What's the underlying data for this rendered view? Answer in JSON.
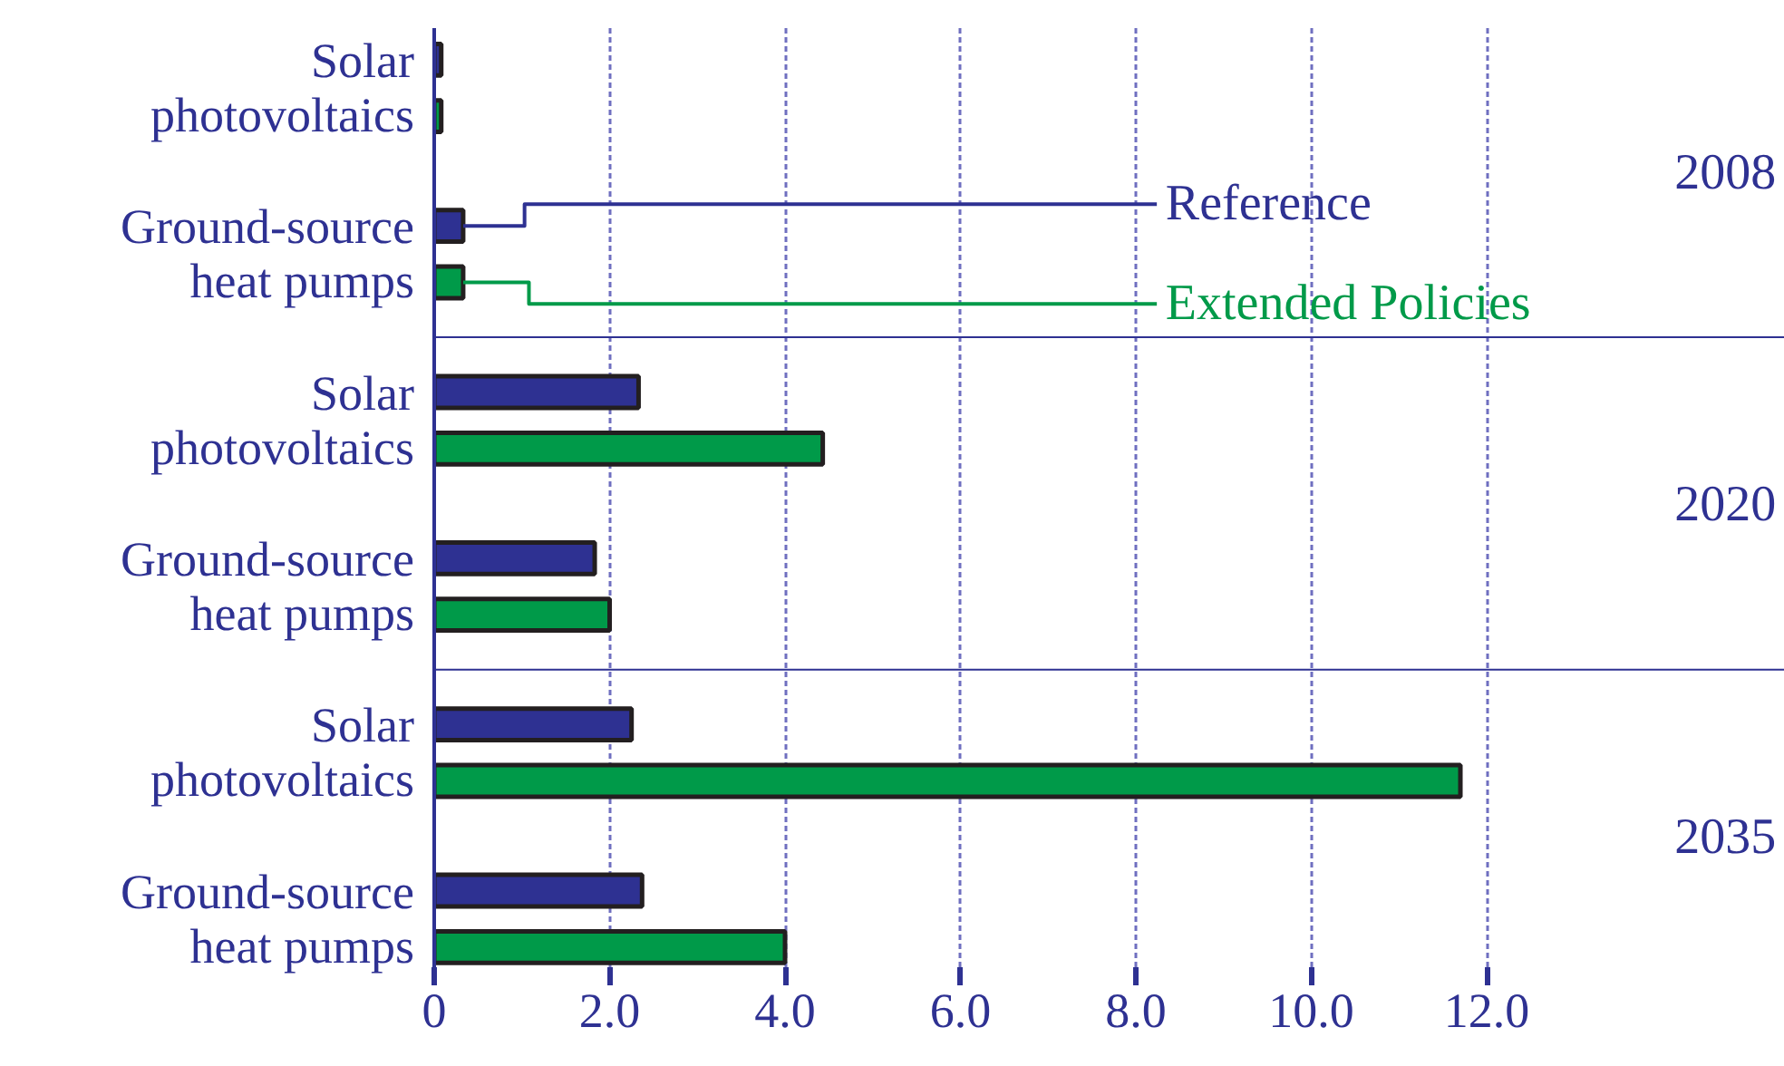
{
  "chart_data": {
    "type": "bar",
    "orientation": "horizontal",
    "categories": [
      "Solar\nphotovoltaics",
      "Ground-source\nheat pumps",
      "Solar\nphotovoltaics",
      "Ground-source\nheat pumps",
      "Solar\nphotovoltaics",
      "Ground-source\nheat pumps"
    ],
    "series": [
      {
        "name": "Reference",
        "color": "#2e3192",
        "values": [
          0.08,
          0.33,
          2.33,
          1.83,
          2.25,
          2.37
        ]
      },
      {
        "name": "Extended Policies",
        "color": "#009a49",
        "values": [
          0.08,
          0.33,
          4.43,
          2.0,
          11.7,
          4.0
        ]
      }
    ],
    "annotations": [
      "2008",
      "2020",
      "2035"
    ],
    "xlim": [
      0,
      15.4
    ],
    "xticks": [
      0,
      {
        "value": 2,
        "label": "2.0"
      },
      {
        "value": 4,
        "label": "4.0"
      },
      {
        "value": 6,
        "label": "6.0"
      },
      {
        "value": 8,
        "label": "8.0"
      },
      {
        "value": 10,
        "label": "10.0"
      },
      {
        "value": 12,
        "label": "12.0"
      }
    ],
    "grid": "x",
    "legend": false
  }
}
